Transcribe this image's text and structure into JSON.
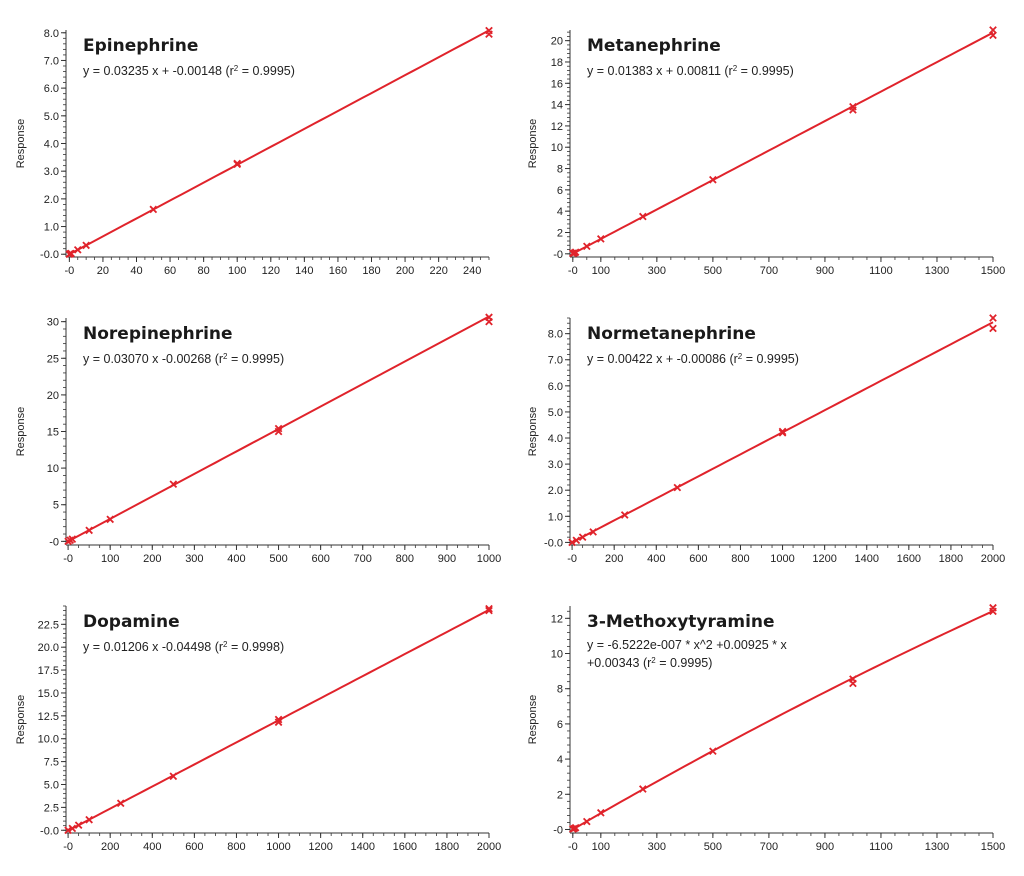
{
  "figure": {
    "line_color": "#e0232b",
    "marker_color": "#e0232b",
    "axis_color": "#333333"
  },
  "chart_data": [
    {
      "type": "scatter",
      "title": "Epinephrine",
      "equation": [
        "y = 0.03235 x + -0.00148 (r",
        "2",
        " = 0.9995)"
      ],
      "xlabel": "",
      "ylabel": "Response",
      "xlim": [
        -2,
        250
      ],
      "ylim": [
        -0.1,
        8.1
      ],
      "xticks": [
        0,
        20,
        40,
        60,
        80,
        100,
        120,
        140,
        160,
        180,
        200,
        220,
        240
      ],
      "xtick_labels": [
        "-0",
        "20",
        "40",
        "60",
        "80",
        "100",
        "120",
        "140",
        "160",
        "180",
        "200",
        "220",
        "240"
      ],
      "yticks": [
        0,
        1,
        2,
        3,
        4,
        5,
        6,
        7,
        8
      ],
      "ytick_labels": [
        "-0.0",
        "1.0",
        "2.0",
        "3.0",
        "4.0",
        "5.0",
        "6.0",
        "7.0",
        "8.0"
      ],
      "fit": {
        "kind": "linear",
        "a": 0,
        "b": 0.03235,
        "c": -0.00148,
        "xmin": 0,
        "xmax": 250
      },
      "points": {
        "x": [
          0,
          0.5,
          1,
          5,
          10,
          50,
          100,
          100,
          250,
          250
        ],
        "y": [
          0,
          0.02,
          0.03,
          0.16,
          0.32,
          1.62,
          3.25,
          3.28,
          7.95,
          8.08
        ]
      }
    },
    {
      "type": "scatter",
      "title": "Metanephrine",
      "equation": [
        "y = 0.01383 x + 0.00811 (r",
        "2",
        " = 0.9995)"
      ],
      "xlabel": "",
      "ylabel": "Response",
      "xlim": [
        -10,
        1500
      ],
      "ylim": [
        -0.3,
        21
      ],
      "xticks": [
        0,
        100,
        300,
        500,
        700,
        900,
        1100,
        1300,
        1500
      ],
      "xtick_labels": [
        "-0",
        "100",
        "300",
        "500",
        "700",
        "900",
        "1100",
        "1300",
        "1500"
      ],
      "yticks": [
        0,
        2,
        4,
        6,
        8,
        10,
        12,
        14,
        16,
        18,
        20
      ],
      "ytick_labels": [
        "-0",
        "2",
        "4",
        "6",
        "8",
        "10",
        "12",
        "14",
        "16",
        "18",
        "20"
      ],
      "fit": {
        "kind": "linear",
        "a": 0,
        "b": 0.01383,
        "c": 0.00811,
        "xmin": 0,
        "xmax": 1500
      },
      "points": {
        "x": [
          0,
          5,
          10,
          50,
          100,
          250,
          500,
          1000,
          1000,
          1500,
          1500
        ],
        "y": [
          0.05,
          0.07,
          0.15,
          0.7,
          1.4,
          3.5,
          6.95,
          13.5,
          13.8,
          20.5,
          21.0
        ]
      }
    },
    {
      "type": "scatter",
      "title": "Norepinephrine",
      "equation": [
        "y = 0.03070 x -0.00268 (r",
        "2",
        " = 0.9995)"
      ],
      "xlabel": "",
      "ylabel": "Response",
      "xlim": [
        -5,
        1000
      ],
      "ylim": [
        -0.5,
        30.5
      ],
      "xticks": [
        0,
        100,
        200,
        300,
        400,
        500,
        600,
        700,
        800,
        900,
        1000
      ],
      "xtick_labels": [
        "-0",
        "100",
        "200",
        "300",
        "400",
        "500",
        "600",
        "700",
        "800",
        "900",
        "1000"
      ],
      "yticks": [
        0,
        5,
        10,
        15,
        20,
        25,
        30
      ],
      "ytick_labels": [
        "-0",
        "5",
        "10",
        "15",
        "20",
        "25",
        "30"
      ],
      "fit": {
        "kind": "linear",
        "a": 0,
        "b": 0.0307,
        "c": -0.00268,
        "xmin": 0,
        "xmax": 1000
      },
      "points": {
        "x": [
          0,
          5,
          10,
          50,
          100,
          250,
          500,
          500,
          1000,
          1000
        ],
        "y": [
          0,
          0.15,
          0.3,
          1.5,
          3.0,
          7.8,
          15.0,
          15.4,
          30.0,
          30.6
        ]
      }
    },
    {
      "type": "scatter",
      "title": "Normetanephrine",
      "equation": [
        "y = 0.00422 x + -0.00086 (r",
        "2",
        " = 0.9995)"
      ],
      "xlabel": "",
      "ylabel": "Response",
      "xlim": [
        -10,
        2000
      ],
      "ylim": [
        -0.1,
        8.6
      ],
      "xticks": [
        0,
        200,
        400,
        600,
        800,
        1000,
        1200,
        1400,
        1600,
        1800,
        2000
      ],
      "xtick_labels": [
        "-0",
        "200",
        "400",
        "600",
        "800",
        "1000",
        "1200",
        "1400",
        "1600",
        "1800",
        "2000"
      ],
      "yticks": [
        0,
        1,
        2,
        3,
        4,
        5,
        6,
        7,
        8
      ],
      "ytick_labels": [
        "-0.0",
        "1.0",
        "2.0",
        "3.0",
        "4.0",
        "5.0",
        "6.0",
        "7.0",
        "8.0"
      ],
      "fit": {
        "kind": "linear",
        "a": 0,
        "b": 0.00422,
        "c": -0.00086,
        "xmin": 0,
        "xmax": 2000
      },
      "points": {
        "x": [
          0,
          20,
          50,
          100,
          250,
          500,
          1000,
          1000,
          2000,
          2000
        ],
        "y": [
          0,
          0.08,
          0.2,
          0.4,
          1.05,
          2.1,
          4.2,
          4.25,
          8.2,
          8.6
        ]
      }
    },
    {
      "type": "scatter",
      "title": "Dopamine",
      "equation": [
        "y = 0.01206 x  -0.04498 (r",
        "2",
        " = 0.9998)"
      ],
      "xlabel": "",
      "ylabel": "Response",
      "xlim": [
        -10,
        2000
      ],
      "ylim": [
        -0.3,
        24.5
      ],
      "xticks": [
        0,
        200,
        400,
        600,
        800,
        1000,
        1200,
        1400,
        1600,
        1800,
        2000
      ],
      "xtick_labels": [
        "-0",
        "200",
        "400",
        "600",
        "800",
        "1000",
        "1200",
        "1400",
        "1600",
        "1800",
        "2000"
      ],
      "yticks": [
        0,
        2.5,
        5,
        7.5,
        10,
        12.5,
        15,
        17.5,
        20,
        22.5
      ],
      "ytick_labels": [
        "-0.0",
        "2.5",
        "5.0",
        "7.5",
        "10.0",
        "12.5",
        "15.0",
        "17.5",
        "20.0",
        "22.5"
      ],
      "fit": {
        "kind": "linear",
        "a": 0,
        "b": 0.01206,
        "c": -0.04498,
        "xmin": 0,
        "xmax": 2000
      },
      "points": {
        "x": [
          0,
          20,
          50,
          100,
          250,
          500,
          1000,
          1000,
          2000,
          2000
        ],
        "y": [
          0,
          0.2,
          0.55,
          1.15,
          2.95,
          5.9,
          11.8,
          12.1,
          24.0,
          24.2
        ]
      }
    },
    {
      "type": "scatter",
      "title": "3-Methoxytyramine",
      "equation": [
        "y = -6.5222e-007 * x^2 +0.00925 * x",
        "+0.00343 (r",
        "2",
        " = 0.9995)"
      ],
      "xlabel": "",
      "ylabel": "Response",
      "xlim": [
        -10,
        1500
      ],
      "ylim": [
        -0.2,
        12.7
      ],
      "xticks": [
        0,
        100,
        300,
        500,
        700,
        900,
        1100,
        1300,
        1500
      ],
      "xtick_labels": [
        "-0",
        "100",
        "300",
        "500",
        "700",
        "900",
        "1100",
        "1300",
        "1500"
      ],
      "yticks": [
        0,
        2,
        4,
        6,
        8,
        10,
        12
      ],
      "ytick_labels": [
        "-0",
        "2",
        "4",
        "6",
        "8",
        "10",
        "12"
      ],
      "fit": {
        "kind": "quadratic",
        "a": -6.5222e-07,
        "b": 0.00925,
        "c": 0.00343,
        "xmin": 0,
        "xmax": 1500
      },
      "points": {
        "x": [
          0,
          5,
          10,
          50,
          100,
          250,
          500,
          1000,
          1000,
          1500,
          1500
        ],
        "y": [
          0.03,
          0.05,
          0.1,
          0.45,
          0.95,
          2.3,
          4.45,
          8.3,
          8.55,
          12.4,
          12.6
        ]
      }
    }
  ]
}
